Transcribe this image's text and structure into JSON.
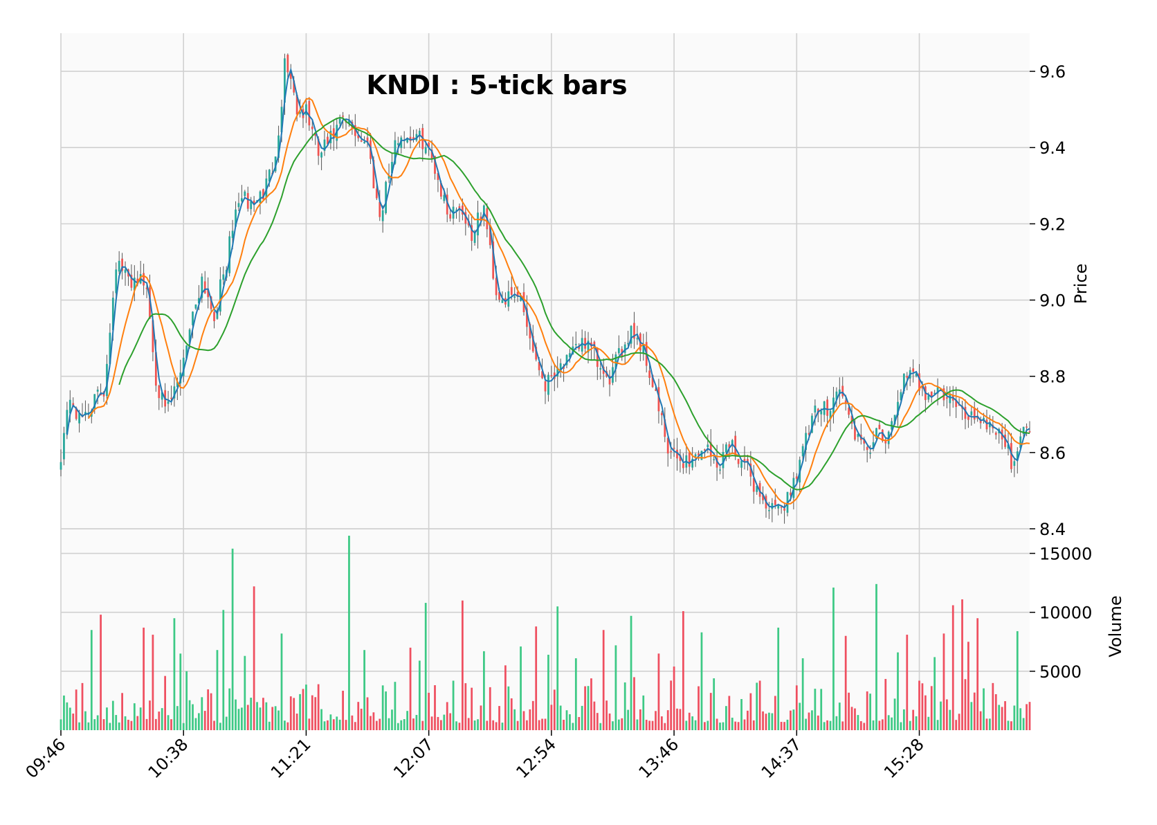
{
  "chart_data": {
    "type": "candlestick",
    "title": "KNDI : 5-tick bars",
    "ylabel": "Price",
    "volume_label": "Volume",
    "ylim": [
      8.4,
      9.7
    ],
    "volume_ylim": [
      0,
      16500
    ],
    "price_ticks": [
      "8.4",
      "8.6",
      "8.8",
      "9.0",
      "9.2",
      "9.4",
      "9.6"
    ],
    "volume_ticks": [
      "5000",
      "10000",
      "15000"
    ],
    "x_tick_labels": [
      "09:46",
      "10:38",
      "11:21",
      "12:07",
      "12:54",
      "13:46",
      "14:37",
      "15:28"
    ],
    "x_tick_bars": [
      0,
      40,
      80,
      120,
      160,
      200,
      240,
      280
    ],
    "n_bars": 317,
    "up_color": "#26a69a",
    "up_volume_color": "#3dc985",
    "down_color": "#ef5350",
    "down_volume_color": "#ef4f60",
    "ma_colors": [
      "#1f77b4",
      "#ff7f0e",
      "#2ca02c"
    ],
    "ma_periods": [
      3,
      10,
      20
    ],
    "close_keypoints": [
      [
        0,
        8.6
      ],
      [
        3,
        8.75
      ],
      [
        6,
        8.68
      ],
      [
        10,
        8.73
      ],
      [
        14,
        8.76
      ],
      [
        18,
        9.1
      ],
      [
        22,
        9.05
      ],
      [
        25,
        9.06
      ],
      [
        28,
        9.03
      ],
      [
        31,
        8.8
      ],
      [
        34,
        8.7
      ],
      [
        38,
        8.78
      ],
      [
        42,
        8.93
      ],
      [
        46,
        9.06
      ],
      [
        50,
        8.96
      ],
      [
        54,
        9.1
      ],
      [
        58,
        9.27
      ],
      [
        62,
        9.25
      ],
      [
        66,
        9.28
      ],
      [
        69,
        9.35
      ],
      [
        72,
        9.5
      ],
      [
        73,
        9.64
      ],
      [
        75,
        9.58
      ],
      [
        78,
        9.47
      ],
      [
        80,
        9.5
      ],
      [
        84,
        9.38
      ],
      [
        88,
        9.42
      ],
      [
        92,
        9.47
      ],
      [
        96,
        9.44
      ],
      [
        100,
        9.41
      ],
      [
        104,
        9.22
      ],
      [
        106,
        9.3
      ],
      [
        110,
        9.43
      ],
      [
        114,
        9.43
      ],
      [
        118,
        9.42
      ],
      [
        122,
        9.35
      ],
      [
        126,
        9.23
      ],
      [
        130,
        9.25
      ],
      [
        134,
        9.17
      ],
      [
        138,
        9.24
      ],
      [
        142,
        9.02
      ],
      [
        146,
        9.0
      ],
      [
        150,
        9.01
      ],
      [
        154,
        8.87
      ],
      [
        158,
        8.78
      ],
      [
        162,
        8.83
      ],
      [
        166,
        8.84
      ],
      [
        170,
        8.9
      ],
      [
        174,
        8.85
      ],
      [
        178,
        8.78
      ],
      [
        182,
        8.85
      ],
      [
        186,
        8.93
      ],
      [
        190,
        8.87
      ],
      [
        194,
        8.75
      ],
      [
        198,
        8.6
      ],
      [
        202,
        8.58
      ],
      [
        206,
        8.58
      ],
      [
        210,
        8.62
      ],
      [
        214,
        8.56
      ],
      [
        218,
        8.63
      ],
      [
        222,
        8.58
      ],
      [
        226,
        8.52
      ],
      [
        230,
        8.46
      ],
      [
        234,
        8.44
      ],
      [
        238,
        8.5
      ],
      [
        242,
        8.61
      ],
      [
        246,
        8.7
      ],
      [
        250,
        8.72
      ],
      [
        254,
        8.77
      ],
      [
        258,
        8.67
      ],
      [
        262,
        8.6
      ],
      [
        266,
        8.64
      ],
      [
        270,
        8.63
      ],
      [
        274,
        8.78
      ],
      [
        278,
        8.8
      ],
      [
        282,
        8.76
      ],
      [
        286,
        8.76
      ],
      [
        290,
        8.74
      ],
      [
        294,
        8.7
      ],
      [
        298,
        8.7
      ],
      [
        302,
        8.68
      ],
      [
        306,
        8.66
      ],
      [
        310,
        8.58
      ],
      [
        314,
        8.65
      ],
      [
        316,
        8.68
      ]
    ],
    "volume_spikes": [
      [
        7,
        4000
      ],
      [
        10,
        8500
      ],
      [
        13,
        9800
      ],
      [
        27,
        8700
      ],
      [
        30,
        8100
      ],
      [
        34,
        4600
      ],
      [
        37,
        9500
      ],
      [
        39,
        6500
      ],
      [
        41,
        5000
      ],
      [
        51,
        6800
      ],
      [
        53,
        10200
      ],
      [
        56,
        15400
      ],
      [
        60,
        6300
      ],
      [
        63,
        12200
      ],
      [
        72,
        8200
      ],
      [
        79,
        3500
      ],
      [
        84,
        3900
      ],
      [
        94,
        16500
      ],
      [
        99,
        6800
      ],
      [
        105,
        3800
      ],
      [
        109,
        4100
      ],
      [
        114,
        7000
      ],
      [
        117,
        5900
      ],
      [
        119,
        10800
      ],
      [
        128,
        4200
      ],
      [
        131,
        11000
      ],
      [
        138,
        6700
      ],
      [
        145,
        5500
      ],
      [
        150,
        7100
      ],
      [
        155,
        8800
      ],
      [
        159,
        6400
      ],
      [
        162,
        10500
      ],
      [
        168,
        6100
      ],
      [
        177,
        8500
      ],
      [
        181,
        7200
      ],
      [
        186,
        9700
      ],
      [
        195,
        6500
      ],
      [
        200,
        5400
      ],
      [
        203,
        10100
      ],
      [
        209,
        8300
      ],
      [
        213,
        4400
      ],
      [
        228,
        4200
      ],
      [
        234,
        8700
      ],
      [
        240,
        3800
      ],
      [
        242,
        6100
      ],
      [
        248,
        3500
      ],
      [
        252,
        12100
      ],
      [
        256,
        8000
      ],
      [
        264,
        3100
      ],
      [
        266,
        12400
      ],
      [
        273,
        6600
      ],
      [
        276,
        8100
      ],
      [
        280,
        4200
      ],
      [
        285,
        6200
      ],
      [
        288,
        8200
      ],
      [
        291,
        10600
      ],
      [
        294,
        11100
      ],
      [
        296,
        7500
      ],
      [
        299,
        9500
      ],
      [
        304,
        4000
      ],
      [
        312,
        8400
      ]
    ]
  }
}
